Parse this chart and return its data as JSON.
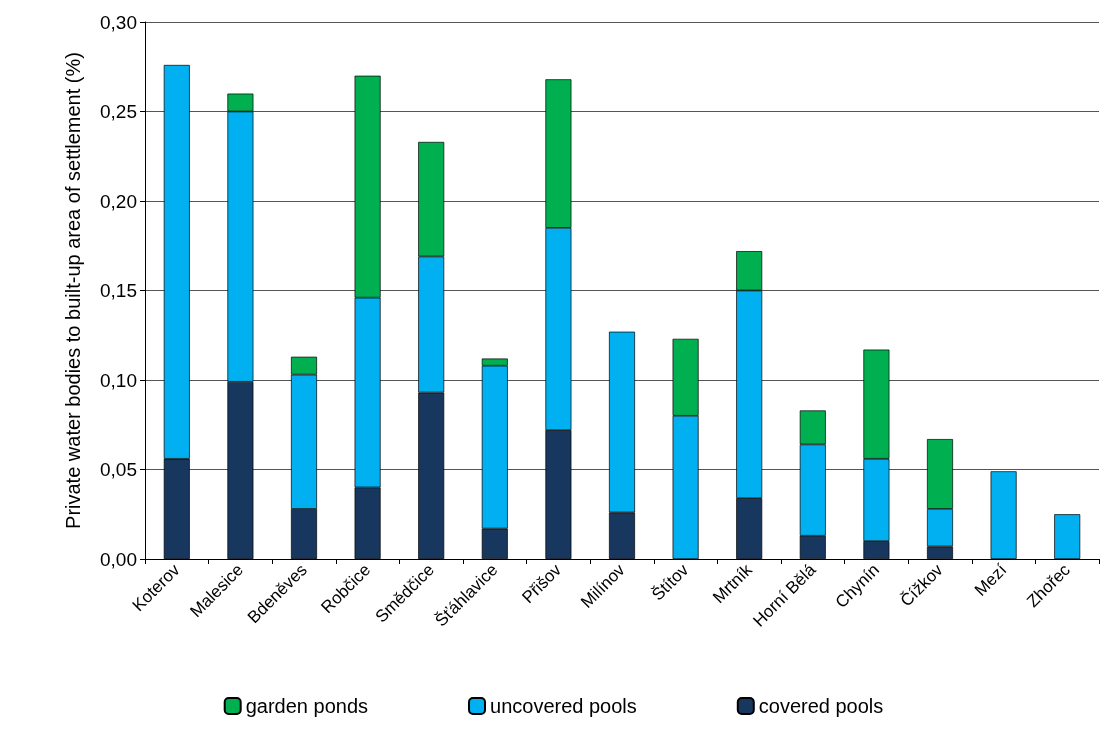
{
  "chart_data": {
    "type": "bar",
    "stacked": true,
    "ylabel": "Private water bodies to built-up area of settlement (%)",
    "categories": [
      "Koterov",
      "Malesice",
      "Bdeněves",
      "Robčice",
      "Smědčice",
      "Šťáhlavice",
      "Přišov",
      "Milínov",
      "Štítov",
      "Mrtník",
      "Horní Bělá",
      "Chynín",
      "Čížkov",
      "Mezí",
      "Zhořec"
    ],
    "series": [
      {
        "name": "covered pools",
        "color": "#17375e",
        "values": [
          0.056,
          0.099,
          0.028,
          0.04,
          0.093,
          0.017,
          0.072,
          0.026,
          null,
          0.034,
          0.013,
          0.01,
          0.007,
          null,
          null
        ]
      },
      {
        "name": "uncovered pools",
        "color": "#00b0f0",
        "values": [
          0.22,
          0.151,
          0.075,
          0.106,
          0.076,
          0.091,
          0.113,
          0.101,
          0.08,
          0.116,
          0.051,
          0.046,
          0.021,
          0.049,
          0.025
        ]
      },
      {
        "name": "garden ponds",
        "color": "#00b050",
        "values": [
          null,
          0.01,
          0.01,
          0.124,
          0.064,
          0.004,
          0.083,
          null,
          0.043,
          0.022,
          0.019,
          0.061,
          0.039,
          null,
          null
        ]
      }
    ],
    "ylim": [
      0,
      0.3
    ],
    "yticks": [
      {
        "value": 0,
        "label": "0,00"
      },
      {
        "value": 0.05,
        "label": "0,05"
      },
      {
        "value": 0.1,
        "label": "0,10"
      },
      {
        "value": 0.15,
        "label": "0,15"
      },
      {
        "value": 0.2,
        "label": "0,20"
      },
      {
        "value": 0.25,
        "label": "0,25"
      },
      {
        "value": 0.3,
        "label": "0,30"
      }
    ],
    "grid": "y",
    "legend": "bottom"
  }
}
